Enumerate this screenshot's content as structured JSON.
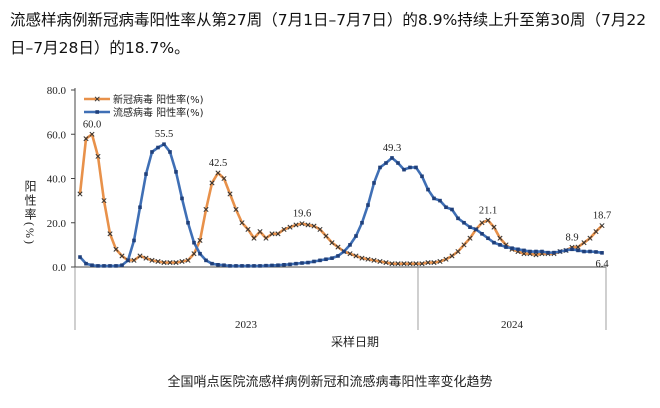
{
  "text": "流感样病例新冠病毒阳性率从第27周（7月1日–7月7日）的8.9%持续上升至第30周（7月22日–7月28日）的18.7%。",
  "caption": "全国哨点医院流感样病例新冠和流感病毒阳性率变化趋势",
  "chart_data": {
    "type": "line",
    "x_label": "采样日期",
    "y_label": "阳性率(%)",
    "years": [
      "2023",
      "2024"
    ],
    "categories": [
      null,
      null,
      null,
      null,
      null,
      null,
      null,
      null,
      null,
      null,
      null,
      null,
      null,
      null,
      null,
      null,
      null,
      null,
      null,
      null,
      null,
      null,
      null,
      null,
      null,
      null,
      null,
      null,
      null,
      null,
      null,
      null,
      null,
      null,
      null,
      null,
      null,
      null,
      null,
      null,
      null,
      null,
      null,
      null,
      null,
      null,
      null,
      null,
      null,
      null,
      null,
      null,
      null,
      null,
      null,
      null,
      null,
      null,
      null,
      null,
      null,
      null,
      null,
      null,
      null,
      null,
      null,
      null,
      null,
      null,
      null,
      null,
      null,
      null,
      null,
      null,
      null,
      null,
      null,
      null,
      null,
      null,
      null,
      null,
      null,
      null,
      null,
      null
    ],
    "ylim": [
      0,
      80
    ],
    "yticks": [
      {
        "value": 0,
        "label": "0.0"
      },
      {
        "value": 20,
        "label": "20.0"
      },
      {
        "value": 40,
        "label": "40.0"
      },
      {
        "value": 60,
        "label": "60.0"
      },
      {
        "value": 80,
        "label": "80.0"
      }
    ],
    "legend": "top-left",
    "series": [
      {
        "name": "新冠病毒 阳性率(%)",
        "color": "#e8914a",
        "marker": "x",
        "values": [
          33,
          58,
          60,
          50,
          30,
          15,
          8,
          5,
          3,
          3,
          5,
          4,
          3,
          2.5,
          2,
          2,
          2,
          2.5,
          3,
          6,
          12,
          26,
          38,
          42.5,
          40,
          33,
          26,
          20,
          17,
          13,
          16,
          13,
          15,
          15,
          17,
          18,
          19,
          19.6,
          19,
          18.5,
          17,
          14,
          11,
          9,
          7,
          6,
          5,
          4,
          3.5,
          3,
          2.5,
          2,
          1.5,
          1.5,
          1.5,
          1.5,
          1.5,
          1.5,
          2,
          2,
          2.5,
          3.5,
          5,
          7,
          10,
          13,
          17,
          20,
          21.1,
          18,
          13,
          10,
          8,
          7,
          6,
          6,
          5.5,
          6,
          6,
          6,
          7,
          7.5,
          8.9,
          9,
          11,
          13,
          16,
          18.7
        ],
        "value_labels": [
          null,
          null,
          "60.0",
          null,
          null,
          null,
          null,
          null,
          null,
          null,
          null,
          null,
          null,
          null,
          null,
          null,
          null,
          null,
          null,
          null,
          null,
          null,
          null,
          "42.5",
          null,
          null,
          null,
          null,
          null,
          null,
          null,
          null,
          null,
          null,
          null,
          null,
          null,
          "19.6",
          null,
          null,
          null,
          null,
          null,
          null,
          null,
          null,
          null,
          null,
          null,
          null,
          null,
          null,
          null,
          null,
          null,
          null,
          null,
          null,
          null,
          null,
          null,
          null,
          null,
          null,
          null,
          null,
          null,
          null,
          "21.1",
          null,
          null,
          null,
          null,
          null,
          null,
          null,
          null,
          null,
          null,
          null,
          null,
          null,
          "8.9",
          null,
          null,
          null,
          null,
          "18.7"
        ]
      },
      {
        "name": "流感病毒 阳性率(%)",
        "color": "#3f6fb5",
        "marker": "square",
        "values": [
          4.5,
          1.5,
          0.8,
          0.5,
          0.5,
          0.5,
          0.5,
          0.8,
          3,
          12,
          27,
          42,
          52,
          54,
          55.5,
          52,
          43,
          31,
          20,
          11,
          6,
          3,
          1.5,
          1,
          0.8,
          0.5,
          0.5,
          0.5,
          0.5,
          0.5,
          0.5,
          0.6,
          0.7,
          0.8,
          1,
          1.2,
          1.5,
          1.8,
          2,
          2.5,
          3,
          3.5,
          4,
          5,
          7,
          10,
          14,
          20,
          28,
          38,
          45,
          47,
          49.3,
          47,
          44,
          45,
          45,
          41,
          35,
          31,
          30,
          27,
          26,
          22,
          20,
          18,
          17,
          15,
          13,
          11,
          10,
          9,
          8.5,
          8,
          7.5,
          7,
          7,
          7,
          6.5,
          6.5,
          7,
          7.5,
          8,
          7.5,
          7,
          7,
          6.8,
          6.4
        ],
        "value_labels": [
          null,
          null,
          null,
          null,
          null,
          null,
          null,
          null,
          null,
          null,
          null,
          null,
          null,
          null,
          "55.5",
          null,
          null,
          null,
          null,
          null,
          null,
          null,
          null,
          null,
          null,
          null,
          null,
          null,
          null,
          null,
          null,
          null,
          null,
          null,
          null,
          null,
          null,
          null,
          null,
          null,
          null,
          null,
          null,
          null,
          null,
          null,
          null,
          null,
          null,
          null,
          null,
          null,
          "49.3",
          null,
          null,
          null,
          null,
          null,
          null,
          null,
          null,
          null,
          null,
          null,
          null,
          null,
          null,
          null,
          null,
          null,
          null,
          null,
          null,
          null,
          null,
          null,
          null,
          null,
          null,
          null,
          null,
          null,
          null,
          null,
          null,
          null,
          null,
          "6.4"
        ]
      }
    ]
  }
}
